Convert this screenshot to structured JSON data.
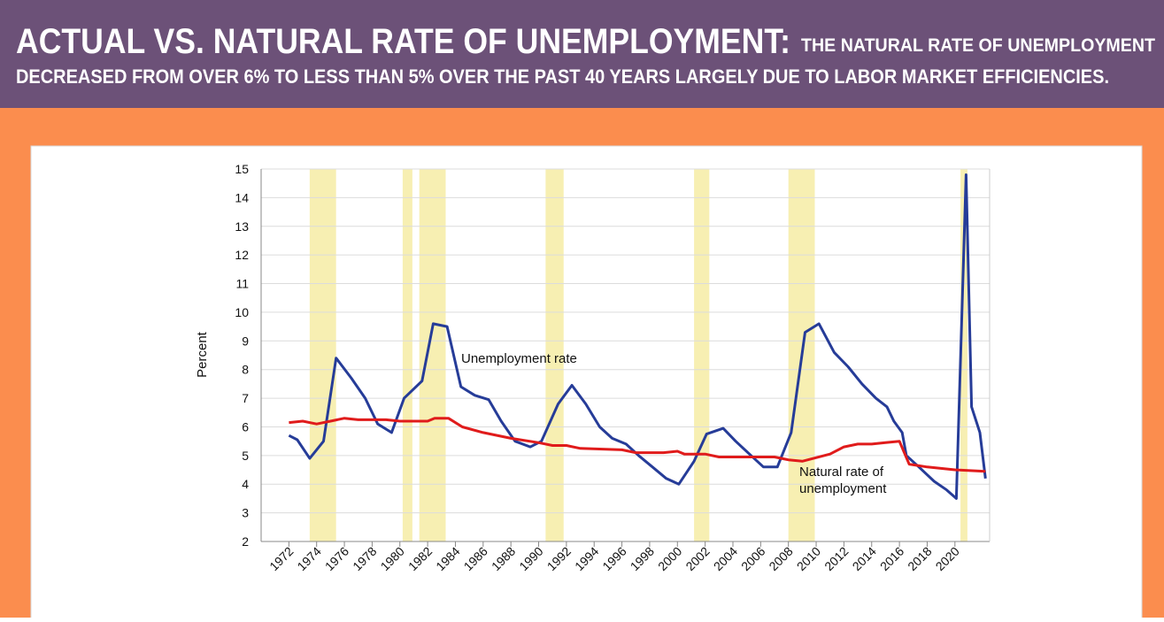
{
  "chart_data": {
    "type": "line",
    "title": "ACTUAL VS. NATURAL RATE OF UNEMPLOYMENT:",
    "subtitle": [
      "THE NATURAL RATE OF UNEMPLOYMENT",
      "DECREASED FROM OVER 6% TO LESS THAN 5% OVER THE PAST 40 YEARS LARGELY DUE TO LABOR MARKET EFFICIENCIES."
    ],
    "ylabel": "Percent",
    "xlim": [
      1970,
      2022.5
    ],
    "xticks": [
      1972,
      1974,
      1976,
      1978,
      1980,
      1982,
      1984,
      1986,
      1988,
      1990,
      1992,
      1994,
      1996,
      1998,
      2000,
      2002,
      2004,
      2006,
      2008,
      2010,
      2012,
      2014,
      2016,
      2018,
      2020
    ],
    "ylim": [
      2,
      15
    ],
    "yticks": [
      2,
      3,
      4,
      5,
      6,
      7,
      8,
      9,
      10,
      11,
      12,
      13,
      14,
      15
    ],
    "grid": true,
    "shade_color": "#f7efb2",
    "shaded_periods": [
      [
        1973.5,
        1975.4
      ],
      [
        1980.2,
        1980.9
      ],
      [
        1981.4,
        1983.3
      ],
      [
        1990.5,
        1991.8
      ],
      [
        2001.2,
        2002.3
      ],
      [
        2008.0,
        2009.9
      ],
      [
        2020.4,
        2020.9
      ]
    ],
    "annotations": [
      "Unemployment rate",
      "Natural rate of",
      "unemployment"
    ],
    "series": [
      {
        "name": "Unemployment rate",
        "color": "#263c98",
        "x": [
          1972.0,
          1972.6,
          1973.5,
          1974.5,
          1975.4,
          1976.5,
          1977.5,
          1978.4,
          1979.4,
          1980.3,
          1981.6,
          1982.4,
          1983.4,
          1984.4,
          1985.4,
          1986.4,
          1987.3,
          1988.3,
          1989.4,
          1990.2,
          1991.4,
          1992.4,
          1993.4,
          1994.4,
          1995.3,
          1996.3,
          1997.2,
          1998.2,
          1999.2,
          2000.1,
          2001.2,
          2002.1,
          2003.3,
          2004.2,
          2005.3,
          2006.2,
          2007.2,
          2008.2,
          2009.2,
          2010.2,
          2011.3,
          2012.3,
          2013.3,
          2014.3,
          2015.1,
          2015.6,
          2016.2,
          2016.5,
          2017.4,
          2018.5,
          2019.4,
          2020.1,
          2020.8,
          2021.2,
          2021.8,
          2022.2
        ],
        "values": [
          5.7,
          5.55,
          4.9,
          5.5,
          8.4,
          7.7,
          7.0,
          6.1,
          5.8,
          7.0,
          7.6,
          9.6,
          9.5,
          7.4,
          7.1,
          6.95,
          6.2,
          5.5,
          5.3,
          5.5,
          6.8,
          7.45,
          6.8,
          6.0,
          5.6,
          5.4,
          5.0,
          4.6,
          4.2,
          4.0,
          4.8,
          5.75,
          5.95,
          5.5,
          5.0,
          4.6,
          4.6,
          5.8,
          9.3,
          9.6,
          8.6,
          8.1,
          7.5,
          7.0,
          6.7,
          6.2,
          5.8,
          5.0,
          4.6,
          4.1,
          3.8,
          3.5,
          14.8,
          6.7,
          5.8,
          4.2
        ]
      },
      {
        "name": "Natural rate of unemployment",
        "color": "#e01b1b",
        "x": [
          1972,
          1973,
          1974,
          1975,
          1976,
          1977,
          1979,
          1980,
          1982,
          1982.5,
          1983.5,
          1984.5,
          1986,
          1988,
          1990,
          1991,
          1992,
          1993,
          1996,
          1997,
          1999,
          2000,
          2000.5,
          2002,
          2003,
          2007,
          2008,
          2009,
          2011,
          2012,
          2013,
          2014,
          2015,
          2016,
          2016.7,
          2018,
          2020,
          2022.2
        ],
        "values": [
          6.15,
          6.2,
          6.1,
          6.2,
          6.3,
          6.25,
          6.25,
          6.2,
          6.2,
          6.3,
          6.3,
          6.0,
          5.8,
          5.6,
          5.45,
          5.35,
          5.35,
          5.25,
          5.2,
          5.1,
          5.1,
          5.15,
          5.05,
          5.05,
          4.95,
          4.95,
          4.85,
          4.8,
          5.05,
          5.3,
          5.4,
          5.4,
          5.45,
          5.5,
          4.7,
          4.6,
          4.5,
          4.45
        ]
      }
    ]
  }
}
